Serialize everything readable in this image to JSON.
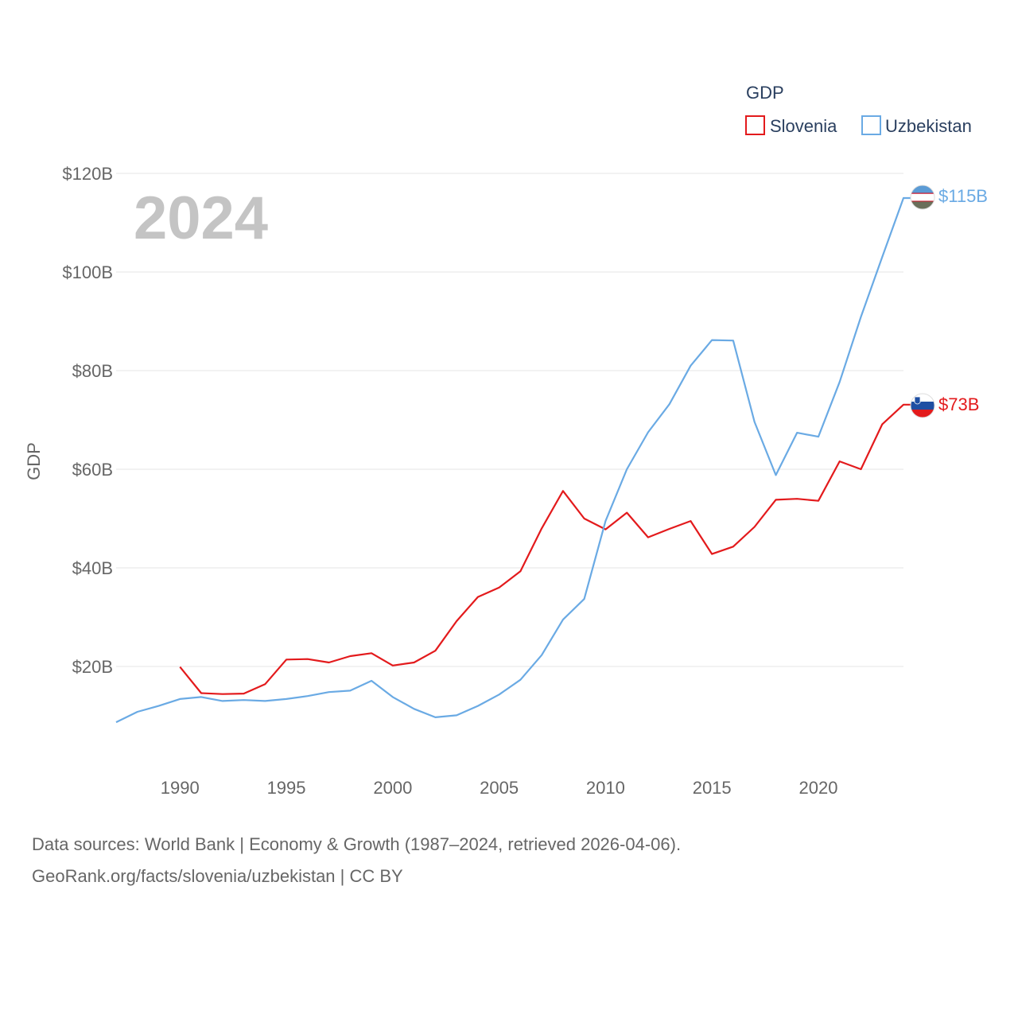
{
  "chart_data": {
    "type": "line",
    "title": "",
    "year_label": "2024",
    "xlabel": "",
    "ylabel": "GDP",
    "xlim": [
      1987,
      2024
    ],
    "ylim": [
      0,
      120
    ],
    "x_ticks": [
      1990,
      1995,
      2000,
      2005,
      2010,
      2015,
      2020
    ],
    "x_tick_labels": [
      "1990",
      "1995",
      "2000",
      "2005",
      "2010",
      "2015",
      "2020"
    ],
    "y_ticks": [
      20,
      40,
      60,
      80,
      100,
      120
    ],
    "y_tick_labels": [
      "$20B",
      "$40B",
      "$60B",
      "$80B",
      "$100B",
      "$120B"
    ],
    "legend": {
      "title": "GDP",
      "position": "top-right",
      "entries": [
        "Slovenia",
        "Uzbekistan"
      ]
    },
    "series": [
      {
        "name": "Slovenia",
        "color": "#e31a1c",
        "end_label": "$73B",
        "flag": "slovenia-flag",
        "points": [
          [
            1990,
            19.9
          ],
          [
            1991,
            14.6
          ],
          [
            1992,
            14.4
          ],
          [
            1993,
            14.5
          ],
          [
            1994,
            16.4
          ],
          [
            1995,
            21.4
          ],
          [
            1996,
            21.5
          ],
          [
            1997,
            20.8
          ],
          [
            1998,
            22.1
          ],
          [
            1999,
            22.7
          ],
          [
            2000,
            20.2
          ],
          [
            2001,
            20.8
          ],
          [
            2002,
            23.2
          ],
          [
            2003,
            29.2
          ],
          [
            2004,
            34.1
          ],
          [
            2005,
            36.0
          ],
          [
            2006,
            39.3
          ],
          [
            2007,
            48.0
          ],
          [
            2008,
            55.6
          ],
          [
            2009,
            50.0
          ],
          [
            2010,
            47.8
          ],
          [
            2011,
            51.2
          ],
          [
            2012,
            46.2
          ],
          [
            2013,
            47.9
          ],
          [
            2014,
            49.5
          ],
          [
            2015,
            42.8
          ],
          [
            2016,
            44.3
          ],
          [
            2017,
            48.3
          ],
          [
            2018,
            53.8
          ],
          [
            2019,
            54.0
          ],
          [
            2020,
            53.6
          ],
          [
            2021,
            61.6
          ],
          [
            2022,
            60.0
          ],
          [
            2023,
            69.1
          ],
          [
            2024,
            73.1
          ]
        ]
      },
      {
        "name": "Uzbekistan",
        "color": "#6aaae4",
        "end_label": "$115B",
        "flag": "uzbekistan-flag",
        "points": [
          [
            1987,
            8.7
          ],
          [
            1988,
            10.8
          ],
          [
            1989,
            12.0
          ],
          [
            1990,
            13.4
          ],
          [
            1991,
            13.8
          ],
          [
            1992,
            13.0
          ],
          [
            1993,
            13.2
          ],
          [
            1994,
            13.0
          ],
          [
            1995,
            13.4
          ],
          [
            1996,
            14.0
          ],
          [
            1997,
            14.8
          ],
          [
            1998,
            15.1
          ],
          [
            1999,
            17.1
          ],
          [
            2000,
            13.8
          ],
          [
            2001,
            11.4
          ],
          [
            2002,
            9.7
          ],
          [
            2003,
            10.1
          ],
          [
            2004,
            12.0
          ],
          [
            2005,
            14.3
          ],
          [
            2006,
            17.3
          ],
          [
            2007,
            22.3
          ],
          [
            2008,
            29.5
          ],
          [
            2009,
            33.7
          ],
          [
            2010,
            49.5
          ],
          [
            2011,
            60.0
          ],
          [
            2012,
            67.5
          ],
          [
            2013,
            73.2
          ],
          [
            2014,
            81.0
          ],
          [
            2015,
            86.2
          ],
          [
            2016,
            86.1
          ],
          [
            2017,
            69.6
          ],
          [
            2018,
            58.8
          ],
          [
            2019,
            67.4
          ],
          [
            2020,
            66.6
          ],
          [
            2021,
            77.7
          ],
          [
            2022,
            90.9
          ],
          [
            2023,
            103.0
          ],
          [
            2024,
            115.0
          ]
        ]
      }
    ]
  },
  "footer": {
    "line1": "Data sources: World Bank | Economy & Growth (1987–2024, retrieved 2026-04-06).",
    "line2": "GeoRank.org/facts/slovenia/uzbekistan | CC BY"
  }
}
